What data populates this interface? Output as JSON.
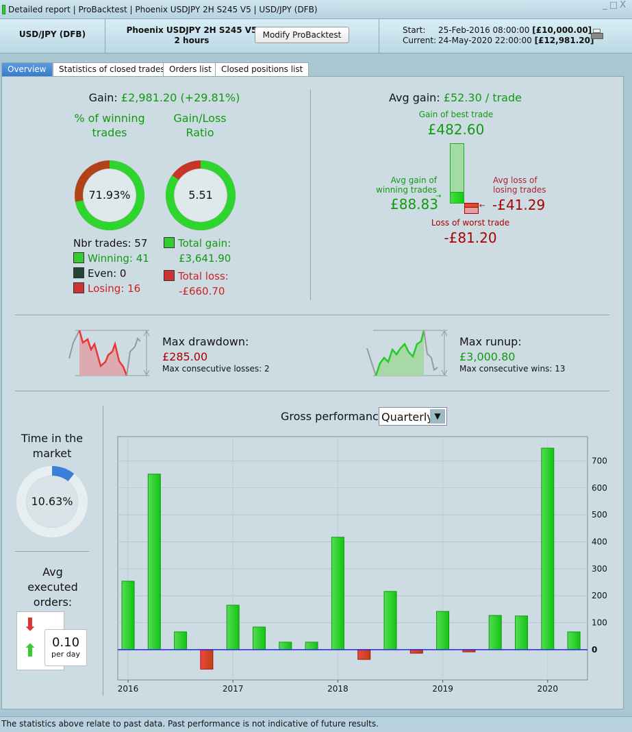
{
  "window": {
    "title": "Detailed report | ProBacktest | Phoenix USDJPY 2H S245 V5 | USD/JPY (DFB)",
    "controls": [
      "_",
      "□",
      "X"
    ]
  },
  "header": {
    "instrument": "USD/JPY (DFB)",
    "system_name": "Phoenix USDJPY 2H S245 V5",
    "timeframe": "2 hours",
    "modify_button": "Modify ProBacktest",
    "start_label": "Start:",
    "start_value": "25-Feb-2016 08:00:00",
    "start_capital": "[£10,000.00]",
    "current_label": "Current:",
    "current_value": "24-May-2020 22:00:00",
    "current_capital": "[£12,981.20]"
  },
  "tabs": [
    {
      "label": "Overview",
      "active": true
    },
    {
      "label": "Statistics of closed trades"
    },
    {
      "label": "Orders list"
    },
    {
      "label": "Closed positions list"
    }
  ],
  "overview": {
    "gain_label": "Gain:",
    "gain_value": "£2,981.20 (+29.81%)",
    "winning_pct_title": "% of winning trades",
    "winning_pct": "71.93%",
    "winning_fraction": 0.7193,
    "ratio_title": "Gain/Loss Ratio",
    "ratio": "5.51",
    "ratio_fraction": 0.8464,
    "nbr_trades": "Nbr trades: 57",
    "winning": "Winning: 41",
    "even": "Even: 0",
    "losing": "Losing: 16",
    "total_gain_label": "Total gain:",
    "total_gain": "£3,641.90",
    "total_loss_label": "Total loss:",
    "total_loss": "-£660.70",
    "avg_gain_label": "Avg gain:",
    "avg_gain_value": "£52.30 / trade",
    "best_trade_label": "Gain of best trade",
    "best_trade": "£482.60",
    "avg_win_label": "Avg gain of winning trades",
    "avg_win": "£88.83",
    "avg_loss_label": "Avg loss of losing trades",
    "avg_loss": "-£41.29",
    "worst_trade_label": "Loss of worst trade",
    "worst_trade": "-£81.20",
    "max_drawdown_label": "Max drawdown:",
    "max_drawdown": "£285.00",
    "max_consec_losses": "Max consecutive losses: 2",
    "max_runup_label": "Max runup:",
    "max_runup": "£3,000.80",
    "max_consec_wins": "Max consecutive wins: 13",
    "time_in_market_label": "Time in the market",
    "time_in_market": "10.63%",
    "time_fraction": 0.1063,
    "avg_orders_label": "Avg executed orders:",
    "avg_orders": "0.10",
    "avg_orders_unit": "per day",
    "gross_perf_label": "Gross performance",
    "period_select": "Quarterly"
  },
  "colors": {
    "green": "#119911",
    "red": "#aa0000",
    "bar_green": "#22cc22",
    "bar_red": "#dd3322",
    "zero_line": "#2222ee"
  },
  "chart_data": {
    "type": "bar",
    "title": "Gross performance",
    "x": [
      "2016-Q1",
      "2016-Q2",
      "2016-Q3",
      "2016-Q4",
      "2017-Q1",
      "2017-Q2",
      "2017-Q3",
      "2017-Q4",
      "2018-Q1",
      "2018-Q2",
      "2018-Q3",
      "2018-Q4",
      "2019-Q1",
      "2019-Q2",
      "2019-Q3",
      "2019-Q4",
      "2020-Q1",
      "2020-Q2"
    ],
    "values": [
      254,
      651,
      66,
      -72,
      165,
      84,
      28,
      28,
      417,
      -36,
      216,
      -13,
      142,
      -8,
      127,
      125,
      747,
      66
    ],
    "xticks": [
      "2016",
      "2017",
      "2018",
      "2019",
      "2020"
    ],
    "yticks": [
      0,
      100,
      200,
      300,
      400,
      500,
      600,
      700
    ],
    "ylim": [
      -112,
      790
    ],
    "grid": true,
    "yaxis_side": "right"
  },
  "footer": {
    "disclaimer": "The statistics above relate to past data. Past performance is not indicative of future results."
  }
}
